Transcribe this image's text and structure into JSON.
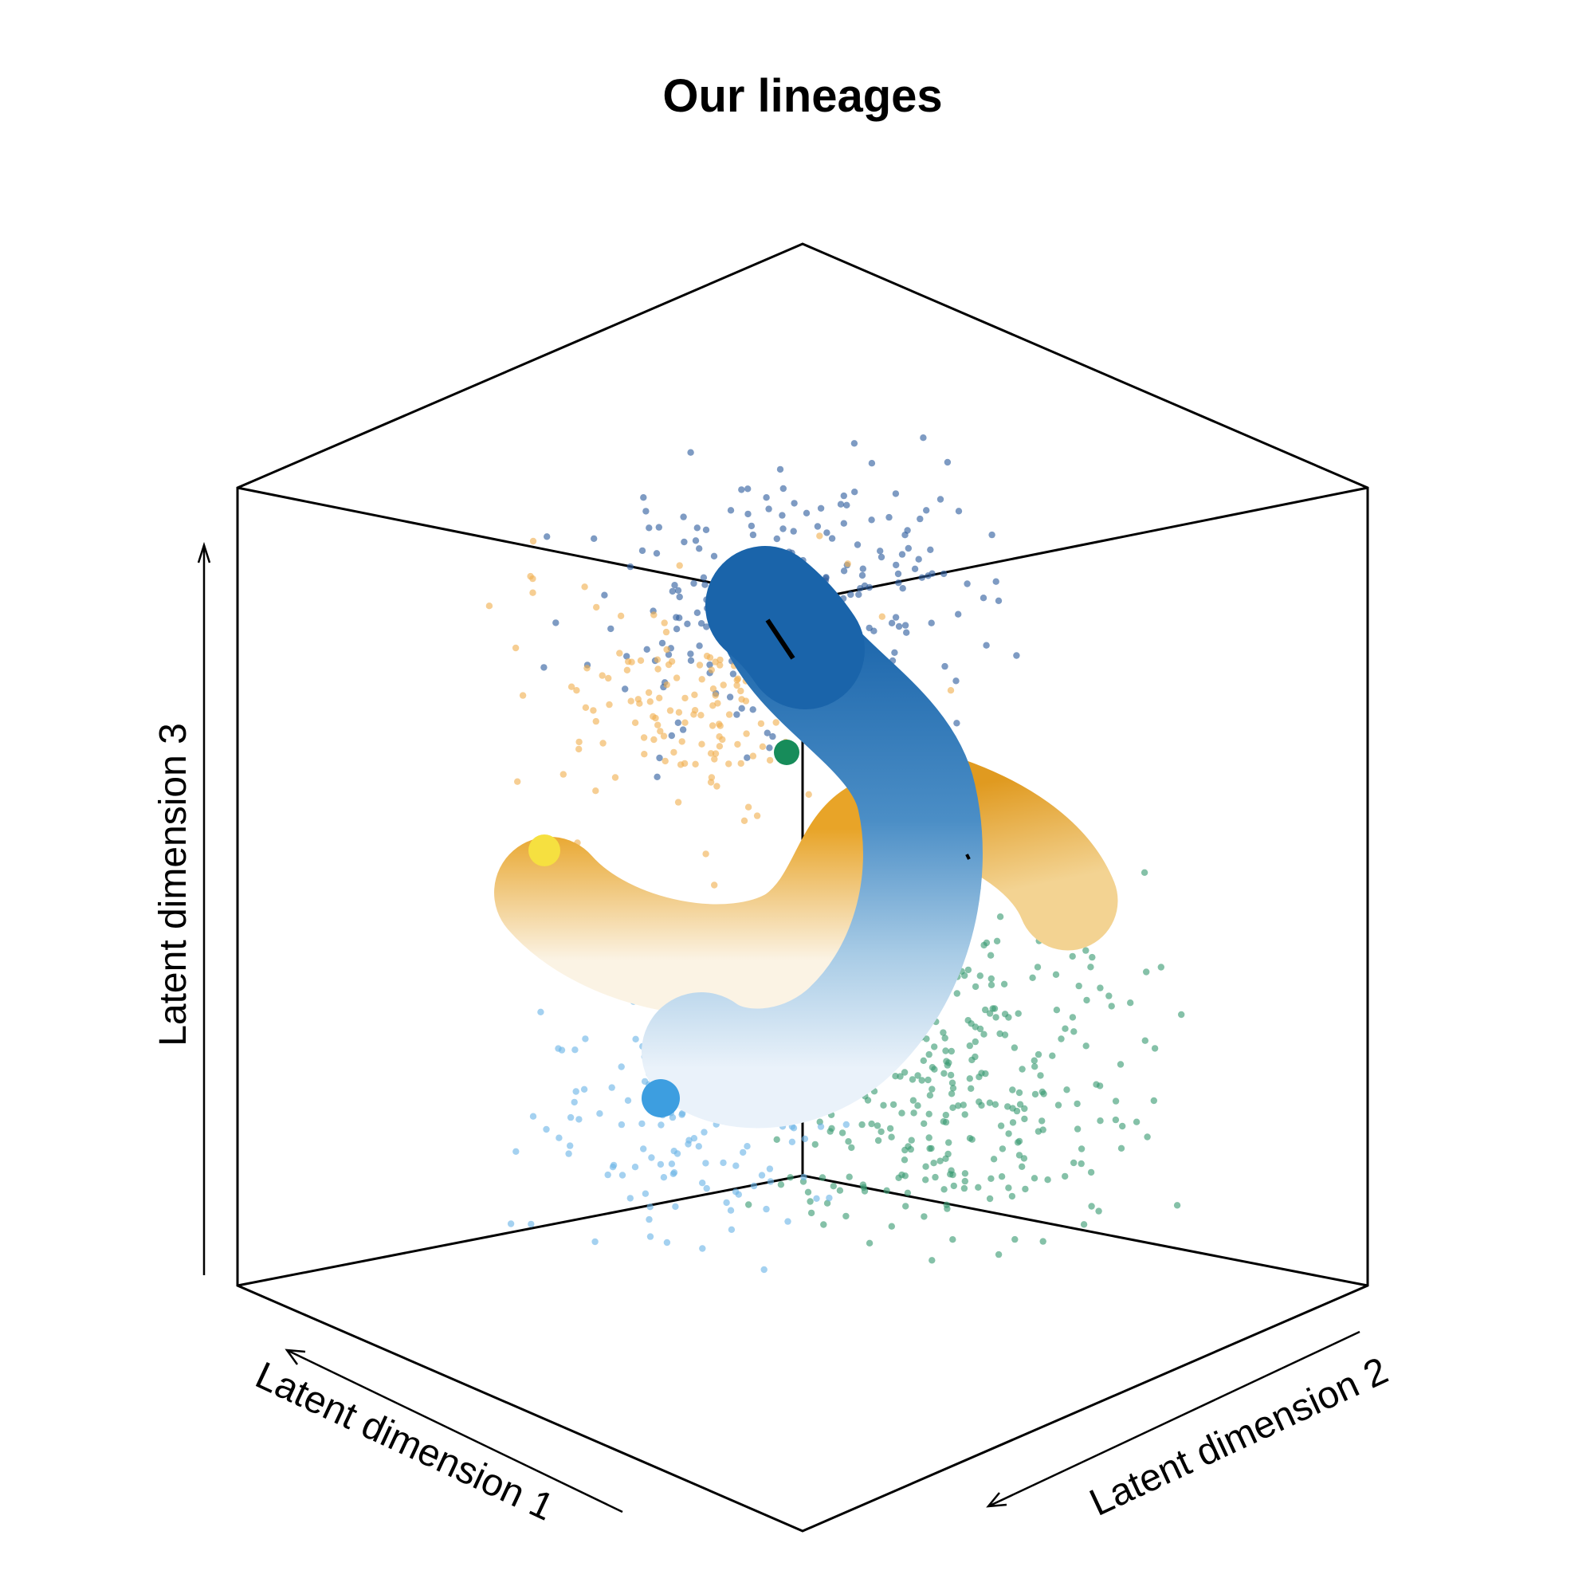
{
  "chart_data": {
    "type": "scatter",
    "title": "Our lineages",
    "axes": {
      "x": {
        "label": "Latent dimension 1"
      },
      "y": {
        "label": "Latent dimension 2"
      },
      "z": {
        "label": "Latent dimension 3"
      }
    },
    "projection": "3d-box",
    "grid": false,
    "legend": "none",
    "point_groups": [
      {
        "color": "#2F5E9E",
        "count": 260,
        "region": "upper"
      },
      {
        "color": "#3A9B73",
        "count": 380,
        "region": "right-lower"
      },
      {
        "color": "#F0B050",
        "count": 160,
        "region": "upper-left"
      },
      {
        "color": "#6CB4E6",
        "count": 140,
        "region": "lower-left"
      }
    ],
    "lineages": [
      {
        "color_start": "#1A64AA",
        "color_end": "#EAF2FA",
        "shape": "long-curve"
      },
      {
        "color_start": "#E7A128",
        "color_end": "#F2D89A",
        "shape": "short-tube"
      },
      {
        "color_start": "#E8A93A",
        "color_end": "#FDF4E2",
        "shape": "u-curve"
      }
    ],
    "markers": [
      {
        "color": "#3D9EE0"
      },
      {
        "color": "#F6E040"
      },
      {
        "color": "#178C5A"
      }
    ]
  }
}
